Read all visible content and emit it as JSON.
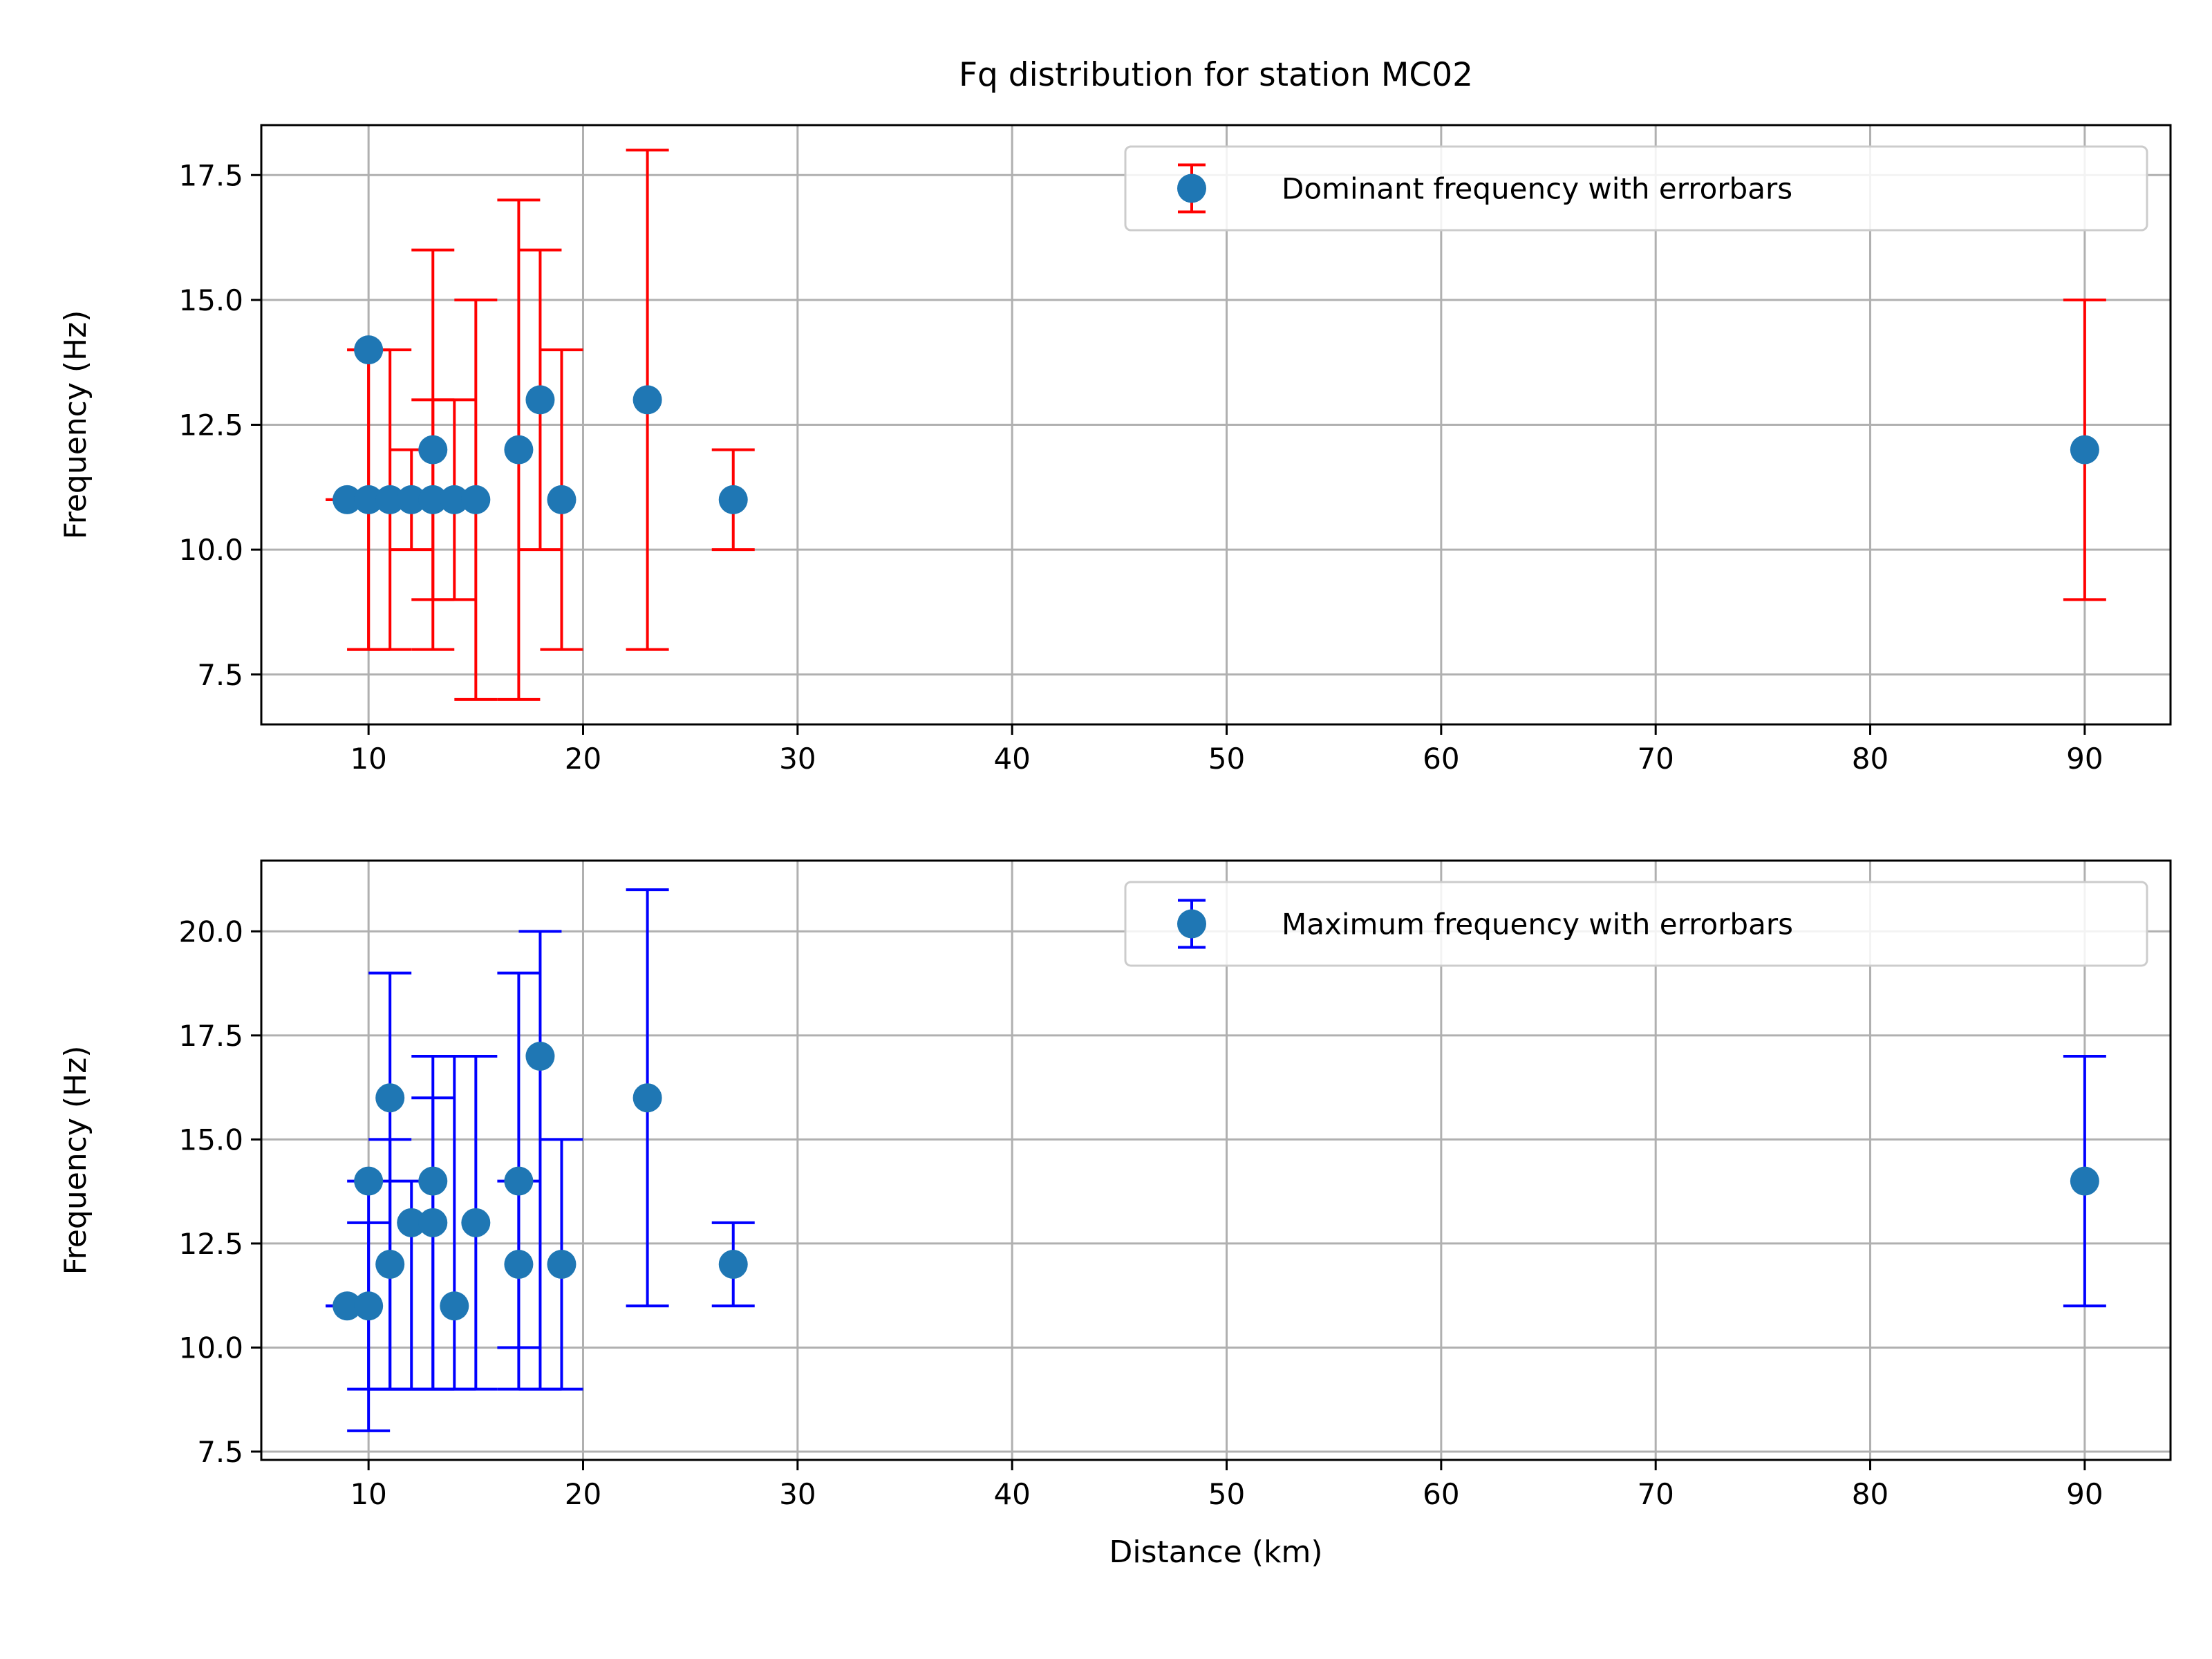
{
  "figure": {
    "title": "Fq distribution for station MC02"
  },
  "colors": {
    "point": "#1f77b4",
    "grid": "#b0b0b0",
    "axis": "#000000",
    "legend_border": "#cccccc"
  },
  "chart_data": [
    {
      "type": "scatter",
      "title": "Fq distribution for station MC02",
      "xlabel": "",
      "ylabel": "Frequency (Hz)",
      "xlim": [
        5,
        94
      ],
      "ylim": [
        6.5,
        18.5
      ],
      "xticks": [
        10,
        20,
        30,
        40,
        50,
        60,
        70,
        80,
        90
      ],
      "yticks": [
        7.5,
        10.0,
        12.5,
        15.0,
        17.5
      ],
      "grid": true,
      "legend_position": "top-right",
      "series": [
        {
          "name": "Dominant frequency with errorbars",
          "errorbar_color": "#ff0000",
          "points": [
            {
              "x": 9,
              "y": 11,
              "ymin": 11,
              "ymax": 11
            },
            {
              "x": 10,
              "y": 14,
              "ymin": 8,
              "ymax": 14
            },
            {
              "x": 10,
              "y": 11,
              "ymin": 8,
              "ymax": 14
            },
            {
              "x": 11,
              "y": 11,
              "ymin": 8,
              "ymax": 14
            },
            {
              "x": 12,
              "y": 11,
              "ymin": 10,
              "ymax": 12
            },
            {
              "x": 13,
              "y": 12,
              "ymin": 8,
              "ymax": 16
            },
            {
              "x": 13,
              "y": 11,
              "ymin": 9,
              "ymax": 13
            },
            {
              "x": 14,
              "y": 11,
              "ymin": 9,
              "ymax": 13
            },
            {
              "x": 15,
              "y": 11,
              "ymin": 7,
              "ymax": 15
            },
            {
              "x": 17,
              "y": 12,
              "ymin": 7,
              "ymax": 17
            },
            {
              "x": 18,
              "y": 13,
              "ymin": 10,
              "ymax": 16
            },
            {
              "x": 19,
              "y": 11,
              "ymin": 8,
              "ymax": 14
            },
            {
              "x": 23,
              "y": 13,
              "ymin": 8,
              "ymax": 18
            },
            {
              "x": 27,
              "y": 11,
              "ymin": 10,
              "ymax": 12
            },
            {
              "x": 90,
              "y": 12,
              "ymin": 9,
              "ymax": 15
            }
          ]
        }
      ]
    },
    {
      "type": "scatter",
      "title": "",
      "xlabel": "Distance (km)",
      "ylabel": "Frequency (Hz)",
      "xlim": [
        5,
        94
      ],
      "ylim": [
        7.3,
        21.7
      ],
      "xticks": [
        10,
        20,
        30,
        40,
        50,
        60,
        70,
        80,
        90
      ],
      "yticks": [
        7.5,
        10.0,
        12.5,
        15.0,
        17.5,
        20.0
      ],
      "grid": true,
      "legend_position": "top-right",
      "series": [
        {
          "name": "Maximum frequency with errorbars",
          "errorbar_color": "#0000ff",
          "points": [
            {
              "x": 9,
              "y": 11,
              "ymin": 11,
              "ymax": 11
            },
            {
              "x": 10,
              "y": 14,
              "ymin": 8,
              "ymax": 14
            },
            {
              "x": 10,
              "y": 11,
              "ymin": 9,
              "ymax": 13
            },
            {
              "x": 11,
              "y": 16,
              "ymin": 9,
              "ymax": 19
            },
            {
              "x": 11,
              "y": 12,
              "ymin": 9,
              "ymax": 15
            },
            {
              "x": 12,
              "y": 13,
              "ymin": 9,
              "ymax": 14
            },
            {
              "x": 13,
              "y": 14,
              "ymin": 9,
              "ymax": 17
            },
            {
              "x": 13,
              "y": 13,
              "ymin": 9,
              "ymax": 16
            },
            {
              "x": 14,
              "y": 11,
              "ymin": 9,
              "ymax": 17
            },
            {
              "x": 15,
              "y": 13,
              "ymin": 9,
              "ymax": 17
            },
            {
              "x": 17,
              "y": 14,
              "ymin": 9,
              "ymax": 19
            },
            {
              "x": 17,
              "y": 12,
              "ymin": 10,
              "ymax": 14
            },
            {
              "x": 18,
              "y": 17,
              "ymin": 9,
              "ymax": 20
            },
            {
              "x": 19,
              "y": 12,
              "ymin": 9,
              "ymax": 15
            },
            {
              "x": 23,
              "y": 16,
              "ymin": 11,
              "ymax": 21
            },
            {
              "x": 27,
              "y": 12,
              "ymin": 11,
              "ymax": 13
            },
            {
              "x": 90,
              "y": 14,
              "ymin": 11,
              "ymax": 17
            }
          ]
        }
      ]
    }
  ]
}
